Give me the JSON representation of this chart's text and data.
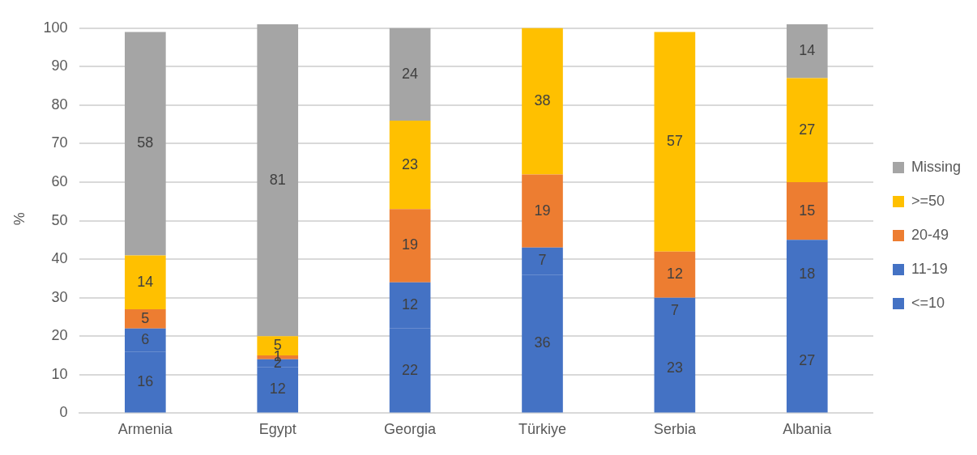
{
  "chart_data": {
    "type": "bar",
    "stacked": true,
    "ylabel": "%",
    "categories": [
      "Armenia",
      "Egypt",
      "Georgia",
      "Türkiye",
      "Serbia",
      "Albania"
    ],
    "series": [
      {
        "name": "<=10",
        "color": "#4472c4",
        "values": [
          16,
          12,
          22,
          36,
          23,
          27
        ]
      },
      {
        "name": "11-19",
        "color": "#4472c4",
        "values": [
          6,
          2,
          12,
          7,
          7,
          18
        ]
      },
      {
        "name": "20-49",
        "color": "#ed7d31",
        "values": [
          5,
          1,
          19,
          19,
          12,
          15
        ]
      },
      {
        "name": ">=50",
        "color": "#ffc000",
        "values": [
          14,
          5,
          23,
          38,
          57,
          27
        ]
      },
      {
        "name": "Missing",
        "color": "#a5a5a5",
        "values": [
          58,
          81,
          24,
          null,
          null,
          14
        ]
      }
    ],
    "ylim": [
      0,
      101
    ],
    "yticks": [
      0,
      10,
      20,
      30,
      40,
      50,
      60,
      70,
      80,
      90,
      100
    ],
    "grid": "y",
    "legend": "right",
    "data_labels": true
  }
}
